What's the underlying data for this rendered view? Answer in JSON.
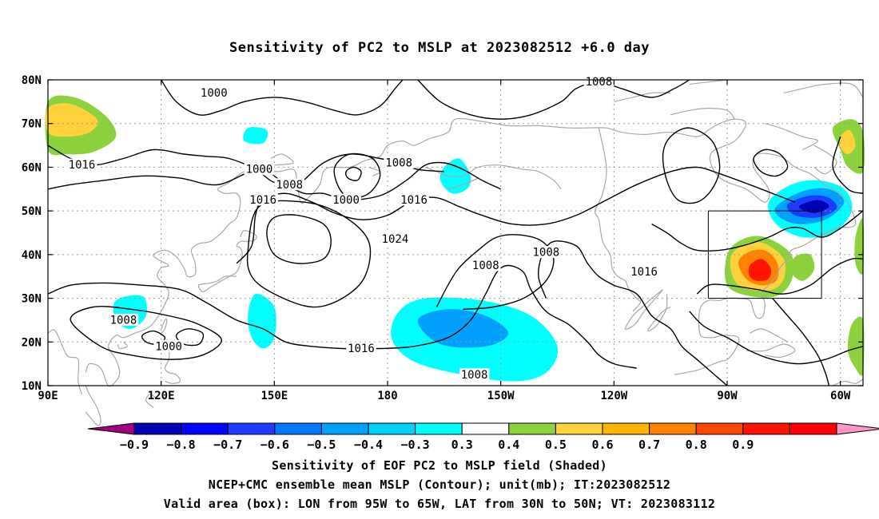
{
  "title": "Sensitivity of PC2 to MSLP at 2023082512 +6.0 day",
  "map": {
    "lat_labels": [
      "80N",
      "70N",
      "60N",
      "50N",
      "40N",
      "30N",
      "20N",
      "10N"
    ],
    "lon_labels": [
      "90E",
      "120E",
      "150E",
      "180",
      "150W",
      "120W",
      "90W",
      "60W"
    ],
    "contour_labels": [
      {
        "text": "1000",
        "lon": 134,
        "lat": 77.0
      },
      {
        "text": "1008",
        "lon": 236,
        "lat": 79.5
      },
      {
        "text": "1016",
        "lon": 99,
        "lat": 60.5
      },
      {
        "text": "1000",
        "lon": 146,
        "lat": 59.5
      },
      {
        "text": "1008",
        "lon": 154,
        "lat": 56.0
      },
      {
        "text": "1016",
        "lon": 147,
        "lat": 52.5
      },
      {
        "text": "1000",
        "lon": 169,
        "lat": 52.5
      },
      {
        "text": "1008",
        "lon": 183,
        "lat": 61.0
      },
      {
        "text": "1016",
        "lon": 187,
        "lat": 52.5
      },
      {
        "text": "1024",
        "lon": 182,
        "lat": 43.5
      },
      {
        "text": "1008",
        "lon": 206,
        "lat": 37.5
      },
      {
        "text": "1008",
        "lon": 222,
        "lat": 40.5
      },
      {
        "text": "1016",
        "lon": 248,
        "lat": 36.0
      },
      {
        "text": "1008",
        "lon": 110,
        "lat": 25.0
      },
      {
        "text": "1000",
        "lon": 122,
        "lat": 19.0
      },
      {
        "text": "1016",
        "lon": 173,
        "lat": 18.5
      },
      {
        "text": "1008",
        "lon": 203,
        "lat": 12.5
      }
    ],
    "valid_box": {
      "lon_min": 265,
      "lon_max": 295,
      "lat_min": 30,
      "lat_max": 50
    }
  },
  "colorbar": {
    "levels": [
      "-0.9",
      "-0.8",
      "-0.7",
      "-0.6",
      "-0.5",
      "-0.4",
      "-0.3",
      "0.3",
      "0.4",
      "0.5",
      "0.6",
      "0.7",
      "0.8",
      "0.9"
    ],
    "colors": [
      "#a0007f",
      "#0000b4",
      "#0000ff",
      "#1e3cff",
      "#0078ff",
      "#00a0ff",
      "#00d2ff",
      "#00ffff",
      "#ffffff",
      "#8cd23c",
      "#ffd23c",
      "#ffb400",
      "#ff8200",
      "#ff4600",
      "#ff1400",
      "#ff0000",
      "#ff96c8"
    ]
  },
  "captions": [
    "Sensitivity of EOF PC2 to MSLP field (Shaded)",
    "NCEP+CMC ensemble mean MSLP (Contour); unit(mb); IT:2023082512",
    "Valid area (box): LON from 95W to 65W, LAT from 30N to 50N; VT: 2023083112"
  ],
  "shading": [
    {
      "level": "-0.8",
      "color": "#0000b4"
    },
    {
      "level": "-0.7",
      "color": "#1e3cff"
    },
    {
      "level": "-0.4",
      "color": "#00a0ff"
    },
    {
      "level": "-0.3",
      "color": "#00ffff"
    },
    {
      "level": "0.3",
      "color": "#8cd23c"
    },
    {
      "level": "0.4",
      "color": "#ffd23c"
    },
    {
      "level": "0.6",
      "color": "#ff8200"
    },
    {
      "level": "0.8",
      "color": "#ff1400"
    }
  ]
}
